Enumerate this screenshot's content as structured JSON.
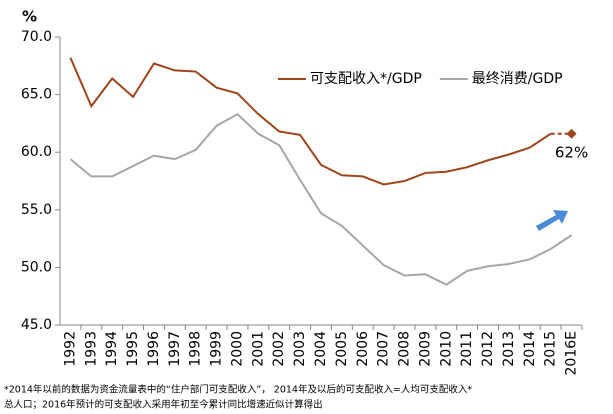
{
  "chart_data": {
    "type": "line",
    "y_unit": "%",
    "categories": [
      "1992",
      "1993",
      "1994",
      "1995",
      "1996",
      "1997",
      "1998",
      "1999",
      "2000",
      "2001",
      "2002",
      "2003",
      "2004",
      "2005",
      "2006",
      "2007",
      "2008",
      "2009",
      "2010",
      "2011",
      "2012",
      "2013",
      "2014",
      "2015",
      "2016E"
    ],
    "series": [
      {
        "name": "可支配收入*/GDP",
        "color": "#a0441a",
        "dashed_last_segment": true,
        "last_marker": "diamond",
        "values": [
          68.2,
          64.0,
          66.4,
          64.8,
          67.7,
          67.1,
          67.0,
          65.6,
          65.1,
          63.3,
          61.8,
          61.5,
          58.9,
          58.0,
          57.9,
          57.2,
          57.5,
          58.2,
          58.3,
          58.7,
          59.3,
          59.8,
          60.4,
          61.6,
          61.6
        ]
      },
      {
        "name": "最终消费/GDP",
        "color": "#a6a6a6",
        "values": [
          59.4,
          57.9,
          57.9,
          58.8,
          59.7,
          59.4,
          60.2,
          62.3,
          63.3,
          61.6,
          60.6,
          57.6,
          54.7,
          53.6,
          51.9,
          50.2,
          49.3,
          49.4,
          48.5,
          49.7,
          50.1,
          50.3,
          50.7,
          51.6,
          52.8
        ]
      }
    ],
    "annotations": [
      "62%"
    ],
    "ylim": [
      45,
      70
    ],
    "yticks": [
      {
        "value": 45,
        "label": "45.0"
      },
      {
        "value": 50,
        "label": "50.0"
      },
      {
        "value": 55,
        "label": "55.0"
      },
      {
        "value": 60,
        "label": "60.0"
      },
      {
        "value": 65,
        "label": "65.0"
      },
      {
        "value": 70,
        "label": "70.0"
      }
    ],
    "grid": false,
    "legend": "top-right",
    "notes": [
      "*2014年以前的数据为资金流量表中的“住户部门可支配收入”， 2014年及以后的可支配收入=人均可支配收入*",
      "总人口；2016年预计的可支配收入采用年初至今累计同比增速近似计算得出"
    ]
  }
}
